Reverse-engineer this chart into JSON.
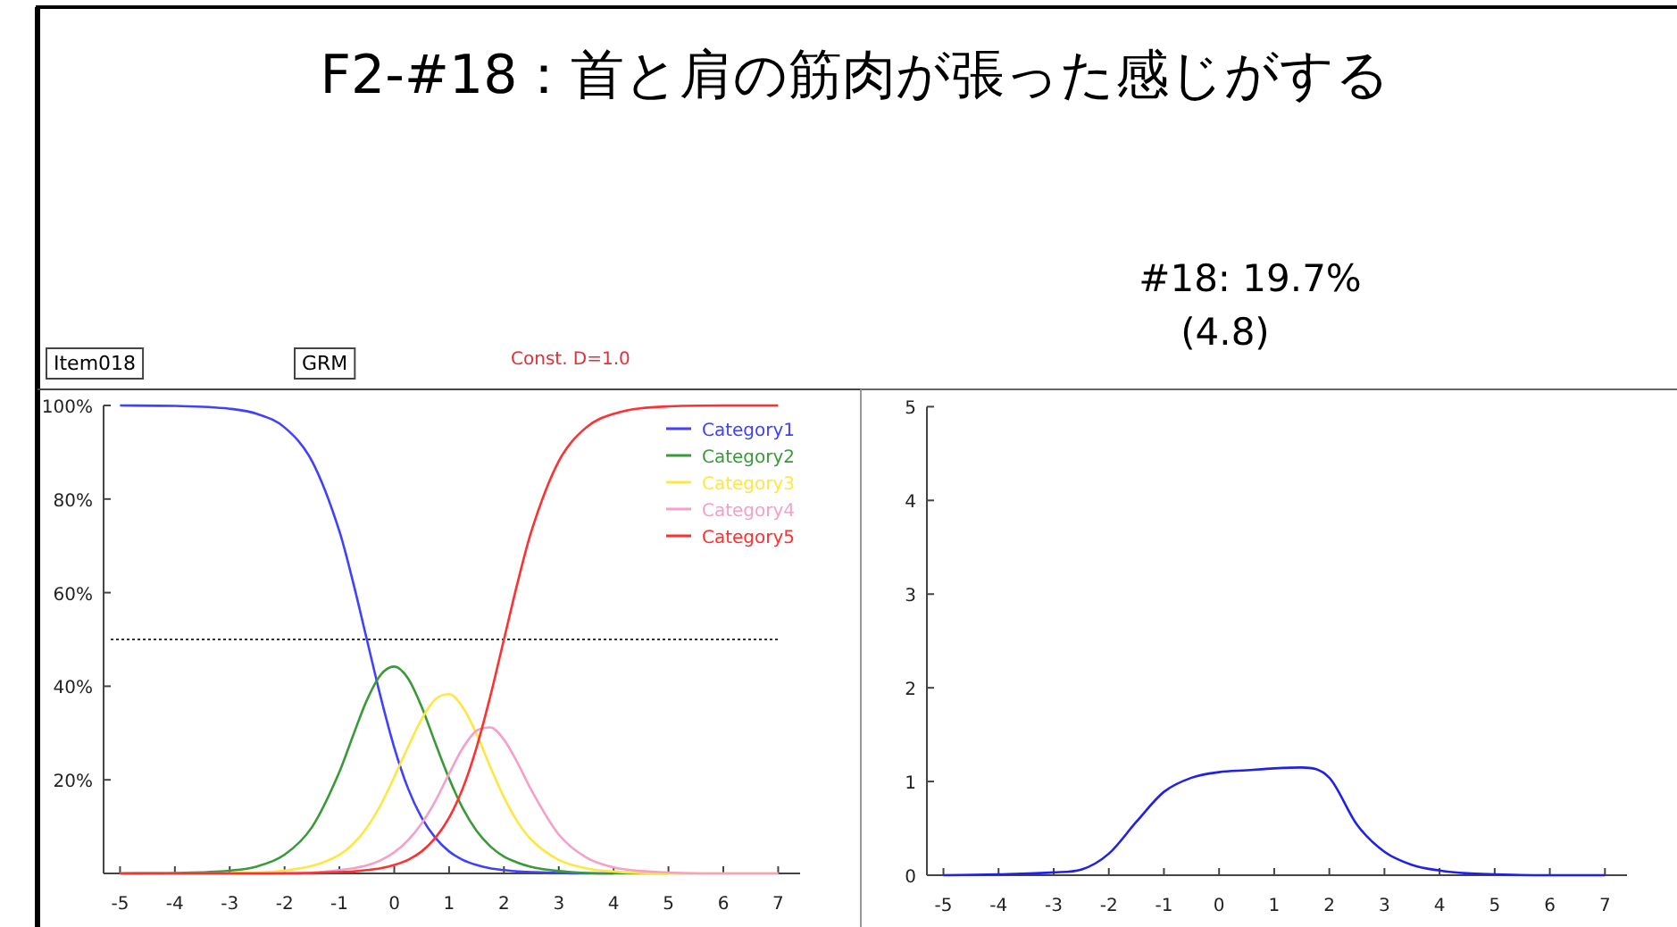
{
  "chart_data": [
    {
      "type": "line",
      "title": "F2-#18：首と肩の筋肉が張った感じがする",
      "annotations": [
        "Item018",
        "GRM",
        "Const. D=1.0"
      ],
      "x": [
        -5,
        -4,
        -3,
        -2.5,
        -2,
        -1.5,
        -1,
        -0.75,
        -0.5,
        -0.25,
        0,
        0.25,
        0.5,
        0.75,
        1,
        1.25,
        1.5,
        1.75,
        2,
        2.25,
        2.5,
        3,
        3.5,
        4,
        5,
        6,
        7
      ],
      "series": [
        {
          "name": "Category1",
          "color": "#4040ff",
          "values": [
            100,
            99.9,
            99.3,
            98.2,
            95.3,
            88.1,
            73.1,
            62.2,
            50,
            37.8,
            26.9,
            18.2,
            11.9,
            7.6,
            4.7,
            2.9,
            1.8,
            1.1,
            0.7,
            0.4,
            0.3,
            0.1,
            0,
            0,
            null,
            null,
            null
          ]
        },
        {
          "name": "Category2",
          "color": "#3a9a3a",
          "values": [
            0,
            0.1,
            0.6,
            1.5,
            4,
            9.9,
            21.7,
            29.5,
            37,
            42.4,
            44.2,
            41.7,
            35.6,
            27.8,
            20.3,
            13.9,
            9.1,
            5.8,
            3.6,
            2.3,
            1.4,
            0.5,
            0.1,
            0,
            0,
            null,
            null
          ]
        },
        {
          "name": "Category3",
          "color": "#ffe640",
          "values": [
            null,
            null,
            0.1,
            0.2,
            0.6,
            1.6,
            4,
            6.3,
            9.8,
            14.6,
            20.6,
            27,
            33,
            37.2,
            38.3,
            35.5,
            29.8,
            22.8,
            16.3,
            11,
            7.2,
            2.9,
            1.1,
            0.4,
            0,
            0,
            0
          ]
        },
        {
          "name": "Category4",
          "color": "#f4a0c8",
          "values": [
            0,
            0,
            0,
            0,
            0.1,
            0.2,
            0.7,
            1.1,
            1.7,
            2.8,
            4.5,
            7.1,
            10.7,
            15.5,
            21.3,
            26.8,
            30.5,
            31.2,
            28.6,
            23.6,
            17.8,
            8.3,
            3.4,
            1.3,
            0.2,
            0,
            0
          ]
        },
        {
          "name": "Category5",
          "color": "#ff3030",
          "values": [
            0,
            0,
            0,
            0,
            0,
            0.1,
            0.3,
            0.4,
            0.7,
            1.1,
            1.8,
            2.9,
            4.7,
            7.6,
            11.9,
            18.2,
            26.9,
            37.8,
            50,
            62.2,
            73.1,
            88.1,
            95.3,
            98.2,
            99.8,
            100,
            100
          ]
        }
      ],
      "xlim": [
        -5.3,
        7.4
      ],
      "xticks": [
        -5,
        -4,
        -3,
        -2,
        -1,
        0,
        1,
        2,
        3,
        4,
        5,
        6,
        7
      ],
      "ylim": [
        0,
        100
      ],
      "yticks": [
        {
          "value": 20,
          "label": "20%"
        },
        {
          "value": 40,
          "label": "40%"
        },
        {
          "value": 60,
          "label": "60%"
        },
        {
          "value": 80,
          "label": "80%"
        },
        {
          "value": 100,
          "label": "100%"
        }
      ],
      "ref_lines": [
        {
          "axis": "y",
          "value": 50,
          "color": "#333333",
          "line_style": "dotted"
        }
      ],
      "legend": "top right",
      "grid": false
    },
    {
      "type": "line",
      "title": "#18: 19.7%",
      "subtitle": "(4.8)",
      "x": [
        -5,
        -4,
        -3,
        -2.5,
        -2,
        -1.5,
        -1,
        -0.5,
        0,
        0.5,
        1,
        1.5,
        2,
        2.5,
        3,
        3.5,
        4,
        4.5,
        5,
        6,
        7
      ],
      "series": [
        {
          "color": "#2020ee",
          "values": [
            0,
            0.01,
            0.03,
            0.06,
            0.23,
            0.57,
            0.89,
            1.04,
            1.1,
            1.12,
            1.14,
            1.15,
            1.04,
            0.54,
            0.25,
            0.11,
            0.05,
            0.02,
            0.01,
            0,
            0
          ]
        }
      ],
      "xlim": [
        -5.3,
        7.4
      ],
      "xticks": [
        -5,
        -4,
        -3,
        -2,
        -1,
        0,
        1,
        2,
        3,
        4,
        5,
        6,
        7
      ],
      "ylim": [
        0,
        5
      ],
      "yticks": [
        0,
        1,
        2,
        3,
        4,
        5
      ],
      "grid": false
    }
  ]
}
